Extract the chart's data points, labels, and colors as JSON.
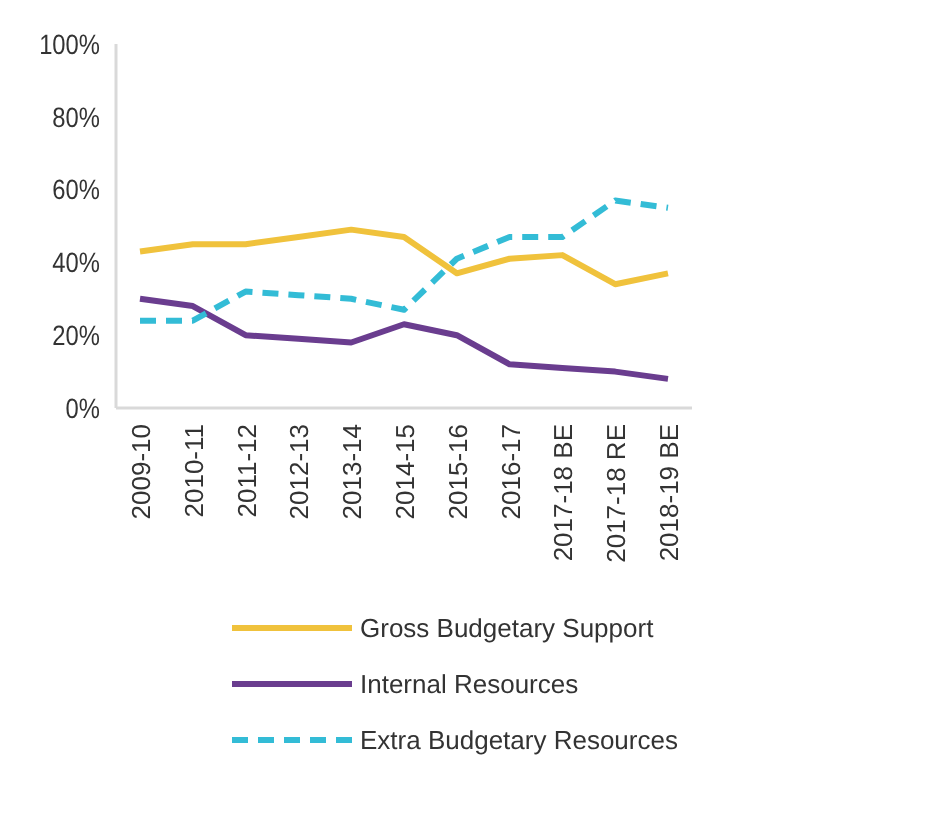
{
  "chart_data": {
    "type": "line",
    "categories": [
      "2009-10",
      "2010-11",
      "2011-12",
      "2012-13",
      "2013-14",
      "2014-15",
      "2015-16",
      "2016-17",
      "2017-18 BE",
      "2017-18 RE",
      "2018-19 BE"
    ],
    "ylim": [
      0,
      100
    ],
    "yticks": [
      {
        "value": 0,
        "label": "0%"
      },
      {
        "value": 20,
        "label": "20%"
      },
      {
        "value": 40,
        "label": "40%"
      },
      {
        "value": 60,
        "label": "60%"
      },
      {
        "value": 80,
        "label": "80%"
      },
      {
        "value": 100,
        "label": "100%"
      }
    ],
    "grid": false,
    "legend": "bottom",
    "marker": "none",
    "series": [
      {
        "name": "Gross Budgetary Support",
        "color": "#f0c23c",
        "line_style": "solid",
        "values": [
          43,
          45,
          45,
          47,
          49,
          47,
          37,
          41,
          42,
          34,
          37
        ]
      },
      {
        "name": "Internal Resources",
        "color": "#6a3d8f",
        "line_style": "solid",
        "values": [
          30,
          28,
          20,
          19,
          18,
          23,
          20,
          12,
          11,
          10,
          8
        ]
      },
      {
        "name": "Extra Budgetary Resources",
        "color": "#33bcd6",
        "line_style": "dashed",
        "values": [
          24,
          24,
          32,
          31,
          30,
          27,
          41,
          47,
          47,
          57,
          55
        ]
      }
    ]
  }
}
